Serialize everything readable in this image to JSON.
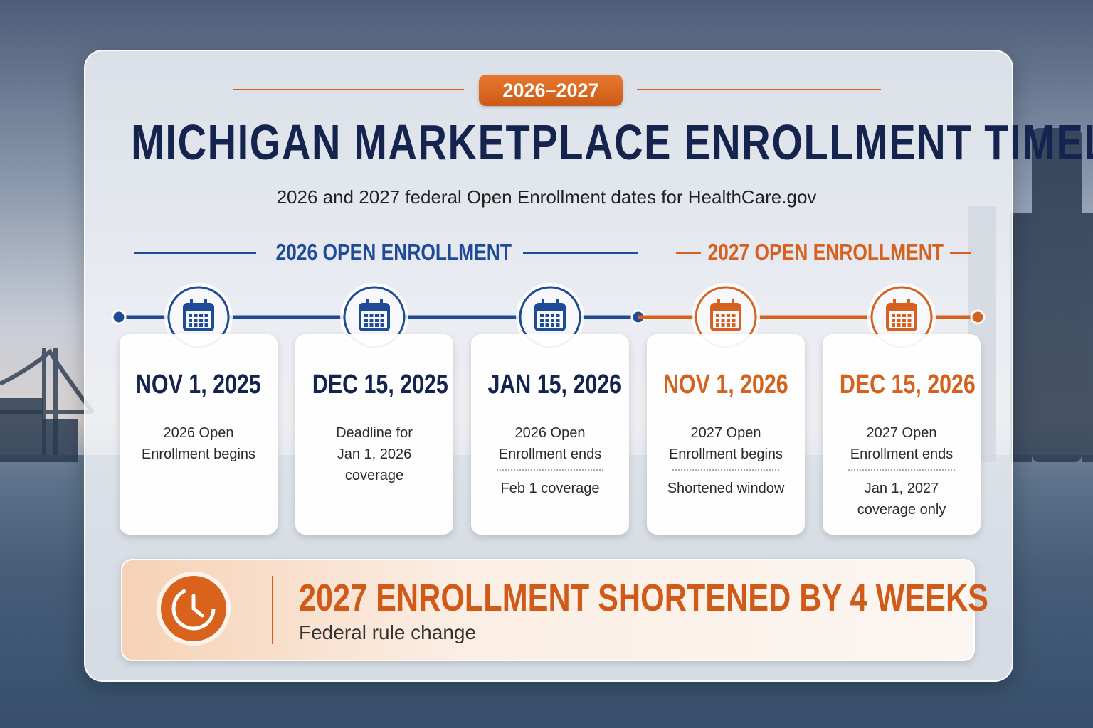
{
  "badge": "2026–2027",
  "title": "MICHIGAN MARKETPLACE ENROLLMENT TIMELINE",
  "subtitle": "2026 and 2027 federal Open Enrollment dates for HealthCare.gov",
  "sections": [
    {
      "label": "2026 OPEN ENROLLMENT",
      "color": "#1f4a96",
      "events": [
        {
          "date": "NOV 1, 2025",
          "description": [
            "2026 Open",
            "Enrollment begins"
          ]
        },
        {
          "date": "DEC 15, 2025",
          "description": [
            "Deadline for",
            "Jan 1, 2026",
            "coverage"
          ]
        },
        {
          "date": "JAN 15, 2026",
          "description": [
            "2026 Open",
            "Enrollment ends"
          ],
          "note": [
            "Feb 1 coverage"
          ]
        }
      ]
    },
    {
      "label": "2027 OPEN ENROLLMENT",
      "color": "#d4621e",
      "events": [
        {
          "date": "NOV 1, 2026",
          "description": [
            "2027 Open",
            "Enrollment begins"
          ],
          "note": [
            "Shortened window"
          ]
        },
        {
          "date": "DEC 15, 2026",
          "description": [
            "2027 Open",
            "Enrollment ends"
          ],
          "note": [
            "Jan 1, 2027",
            "coverage only"
          ]
        }
      ]
    }
  ],
  "banner": {
    "title": "2027 ENROLLMENT SHORTENED BY 4 WEEKS",
    "subtitle": "Federal rule change"
  }
}
